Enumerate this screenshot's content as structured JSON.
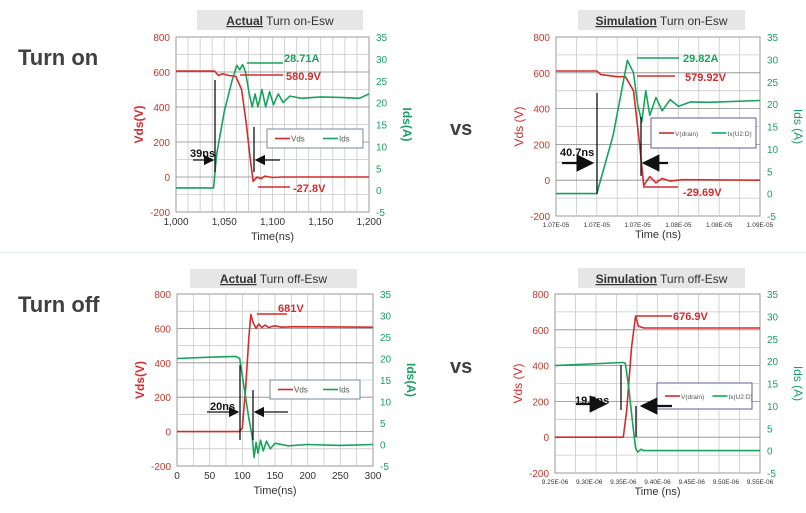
{
  "row_labels": {
    "turn_on": "Turn on",
    "turn_off": "Turn off"
  },
  "vs_label": "vs",
  "colors": {
    "vds": "#d42b2b",
    "ids": "#17a35c",
    "title_box": "#e6e6e6",
    "annotation": "#111111"
  },
  "chart_data": [
    {
      "type": "line",
      "title_bold": "Actual",
      "title_rest": " Turn on-Esw",
      "xlabel": "Time(ns)",
      "ylabel": "Vds(V)",
      "y2label": "Ids(A)",
      "xlim": [
        1000,
        1200
      ],
      "ylim": [
        -200,
        800
      ],
      "y2lim": [
        -5,
        35
      ],
      "xticks": [
        1000,
        1050,
        1100,
        1150,
        1200
      ],
      "xtick_labels": [
        "1,000",
        "1,050",
        "1,100",
        "1,150",
        "1,200"
      ],
      "yticks": [
        -200,
        0,
        200,
        400,
        600,
        800
      ],
      "y2ticks": [
        -5,
        0,
        5,
        10,
        15,
        20,
        25,
        30,
        35
      ],
      "grid": true,
      "legend": "center-right",
      "series": [
        {
          "name": "Vds",
          "axis": "left",
          "x": [
            1000,
            1040,
            1044,
            1048,
            1055,
            1062,
            1068,
            1073,
            1077,
            1080,
            1084,
            1088,
            1092,
            1100,
            1110,
            1200
          ],
          "y": [
            605,
            605,
            580,
            590,
            580,
            575,
            500,
            300,
            100,
            -25,
            0,
            -10,
            5,
            -3,
            0,
            0
          ]
        },
        {
          "name": "Ids",
          "axis": "right",
          "x": [
            1000,
            1039,
            1042,
            1050,
            1058,
            1063,
            1066,
            1069,
            1072,
            1076,
            1079,
            1082,
            1085,
            1089,
            1093,
            1097,
            1101,
            1106,
            1111,
            1118,
            1130,
            1150,
            1170,
            1190,
            1200
          ],
          "y": [
            0.5,
            0.5,
            8,
            18,
            25,
            28.5,
            27.5,
            28.7,
            27,
            22,
            19,
            22,
            19,
            23,
            19,
            22.5,
            19.5,
            22,
            20,
            21.5,
            21,
            21.3,
            21.2,
            21,
            22
          ]
        }
      ],
      "annotations": [
        "28.71A",
        "580.9V",
        "-27.8V",
        "39ns"
      ]
    },
    {
      "type": "line",
      "title_bold": "Simulation",
      "title_rest": " Turn on-Esw",
      "xlabel": "Time (ns)",
      "ylabel": "Vds (V)",
      "y2label": "Ids (A)",
      "xlim": [
        1.066e-05,
        1.086e-05
      ],
      "ylim": [
        -200,
        800
      ],
      "y2lim": [
        -5,
        35
      ],
      "xticks": [
        1.066e-05,
        1.07e-05,
        1.074e-05,
        1.078e-05,
        1.082e-05,
        1.086e-05
      ],
      "xtick_labels": [
        "1.07E-05",
        "1.07E-05",
        "1.07E-05",
        "1.08E-05",
        "1.08E-05",
        "1.09E-05"
      ],
      "yticks": [
        -200,
        0,
        200,
        400,
        600,
        800
      ],
      "y2ticks": [
        -5,
        0,
        5,
        10,
        15,
        20,
        25,
        30,
        35
      ],
      "grid": true,
      "legend": "center-right",
      "series": [
        {
          "name": "V(drain)",
          "axis": "left",
          "x": [
            1.066e-05,
            1.07e-05,
            1.0704e-05,
            1.072e-05,
            1.0728e-05,
            1.0736e-05,
            1.0742e-05,
            1.0746e-05,
            1.0752e-05,
            1.0758e-05,
            1.0764e-05,
            1.0772e-05,
            1.0784e-05,
            1.086e-05
          ],
          "y": [
            610,
            610,
            590,
            578,
            578,
            500,
            200,
            -30,
            20,
            -15,
            10,
            -5,
            3,
            0
          ]
        },
        {
          "name": "Ix(U2:D)",
          "axis": "right",
          "x": [
            1.066e-05,
            1.07e-05,
            1.0716e-05,
            1.073e-05,
            1.0736e-05,
            1.074e-05,
            1.0744e-05,
            1.0748e-05,
            1.0752e-05,
            1.0758e-05,
            1.0764e-05,
            1.0772e-05,
            1.078e-05,
            1.0792e-05,
            1.081e-05,
            1.086e-05
          ],
          "y": [
            0,
            0,
            13,
            29.8,
            27,
            20,
            16,
            23,
            17.5,
            21.5,
            18.5,
            21,
            19.5,
            20.5,
            20.4,
            20.8
          ]
        }
      ],
      "annotations": [
        "29.82A",
        "579.92V",
        "-29.69V",
        "40.7ns"
      ]
    },
    {
      "type": "line",
      "title_bold": "Actual",
      "title_rest": " Turn off-Esw",
      "xlabel": "Time(ns)",
      "ylabel": "Vds(V)",
      "y2label": "Ids(A)",
      "xlim": [
        0,
        300
      ],
      "ylim": [
        -200,
        800
      ],
      "y2lim": [
        -5,
        35
      ],
      "xticks": [
        0,
        50,
        100,
        150,
        200,
        250,
        300
      ],
      "xtick_labels": [
        "0",
        "50",
        "100",
        "150",
        "200",
        "250",
        "300"
      ],
      "yticks": [
        -200,
        0,
        200,
        400,
        600,
        800
      ],
      "y2ticks": [
        -5,
        0,
        5,
        10,
        15,
        20,
        25,
        30,
        35
      ],
      "grid": true,
      "legend": "center-right",
      "series": [
        {
          "name": "Vds",
          "axis": "left",
          "x": [
            0,
            95,
            100,
            105,
            110,
            113,
            117,
            121,
            125,
            130,
            135,
            140,
            150,
            160,
            180,
            300
          ],
          "y": [
            0,
            0,
            20,
            250,
            550,
            680,
            630,
            600,
            625,
            605,
            620,
            605,
            615,
            607,
            610,
            607
          ]
        },
        {
          "name": "Ids",
          "axis": "right",
          "x": [
            0,
            50,
            90,
            96,
            100,
            105,
            110,
            115,
            118,
            121,
            124,
            128,
            132,
            137,
            143,
            150,
            170,
            200,
            250,
            300
          ],
          "y": [
            20,
            20.3,
            20.5,
            20,
            16,
            11,
            6,
            2,
            -3,
            0.5,
            -2,
            1,
            -1.5,
            0.8,
            -1,
            0.3,
            -0.3,
            0,
            -0.2,
            0
          ]
        }
      ],
      "annotations": [
        "681V",
        "20ns"
      ]
    },
    {
      "type": "line",
      "title_bold": "Simulation",
      "title_rest": " Turn off-Esw",
      "xlabel": "Time (ns)",
      "ylabel": "Vds (V)",
      "y2label": "Ids (A)",
      "xlim": [
        9.25e-06,
        9.55e-06
      ],
      "ylim": [
        -200,
        800
      ],
      "y2lim": [
        -5,
        35
      ],
      "xticks": [
        9.25e-06,
        9.3e-06,
        9.35e-06,
        9.4e-06,
        9.45e-06,
        9.5e-06,
        9.55e-06
      ],
      "xtick_labels": [
        "9.25E-06",
        "9.30E-06",
        "9.35E-06",
        "9.40E-06",
        "9.45E-06",
        "9.50E-06",
        "9.55E-06"
      ],
      "yticks": [
        -200,
        0,
        200,
        400,
        600,
        800
      ],
      "y2ticks": [
        -5,
        0,
        5,
        10,
        15,
        20,
        25,
        30,
        35
      ],
      "grid": true,
      "legend": "center-right",
      "series": [
        {
          "name": "V(drain)",
          "axis": "left",
          "x": [
            9.25e-06,
            9.35e-06,
            9.355e-06,
            9.362e-06,
            9.368e-06,
            9.372e-06,
            9.376e-06,
            9.38e-06,
            9.55e-06
          ],
          "y": [
            0,
            0,
            150,
            500,
            677,
            620,
            615,
            610,
            610
          ]
        },
        {
          "name": "Ix(U2:D)",
          "axis": "right",
          "x": [
            9.25e-06,
            9.35e-06,
            9.353e-06,
            9.358e-06,
            9.363e-06,
            9.368e-06,
            9.371e-06,
            9.376e-06,
            9.38e-06,
            9.55e-06
          ],
          "y": [
            19,
            19.7,
            19.5,
            14,
            7,
            0.5,
            -0.3,
            0.3,
            0,
            0
          ]
        }
      ],
      "annotations": [
        "676.9V",
        "19.8ns"
      ]
    }
  ]
}
